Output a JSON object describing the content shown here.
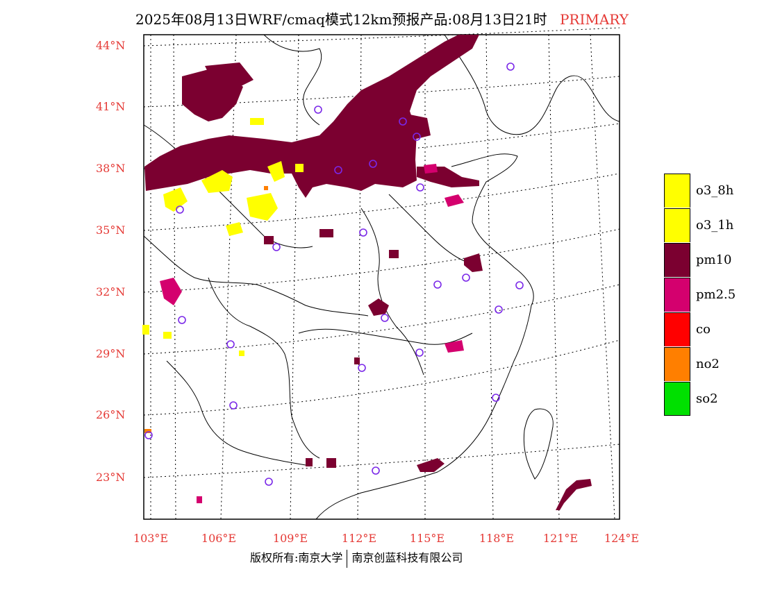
{
  "title": {
    "main": "2025年08月13日WRF/cmaq模式12km预报产品:08月13日21时",
    "tag": "PRIMARY"
  },
  "lat_labels": [
    "44°N",
    "41°N",
    "38°N",
    "35°N",
    "32°N",
    "29°N",
    "26°N",
    "23°N"
  ],
  "lon_labels": [
    "103°E",
    "106°E",
    "109°E",
    "112°E",
    "115°E",
    "118°E",
    "121°E",
    "124°E"
  ],
  "legend": [
    {
      "label": "o3_8h",
      "color": "#ffff00"
    },
    {
      "label": "o3_1h",
      "color": "#ffff00"
    },
    {
      "label": "pm10",
      "color": "#7b0030"
    },
    {
      "label": "pm2.5",
      "color": "#d4006e"
    },
    {
      "label": "co",
      "color": "#ff0000"
    },
    {
      "label": "no2",
      "color": "#ff7f00"
    },
    {
      "label": "so2",
      "color": "#00e000"
    }
  ],
  "colors": {
    "pm10": "#7b0030",
    "pm25": "#d4006e",
    "o3": "#ffff00",
    "station": "#7a28e8",
    "label": "#e53935"
  },
  "footer": {
    "left": "版权所有:南京大学",
    "right": "南京创蓝科技有限公司"
  }
}
